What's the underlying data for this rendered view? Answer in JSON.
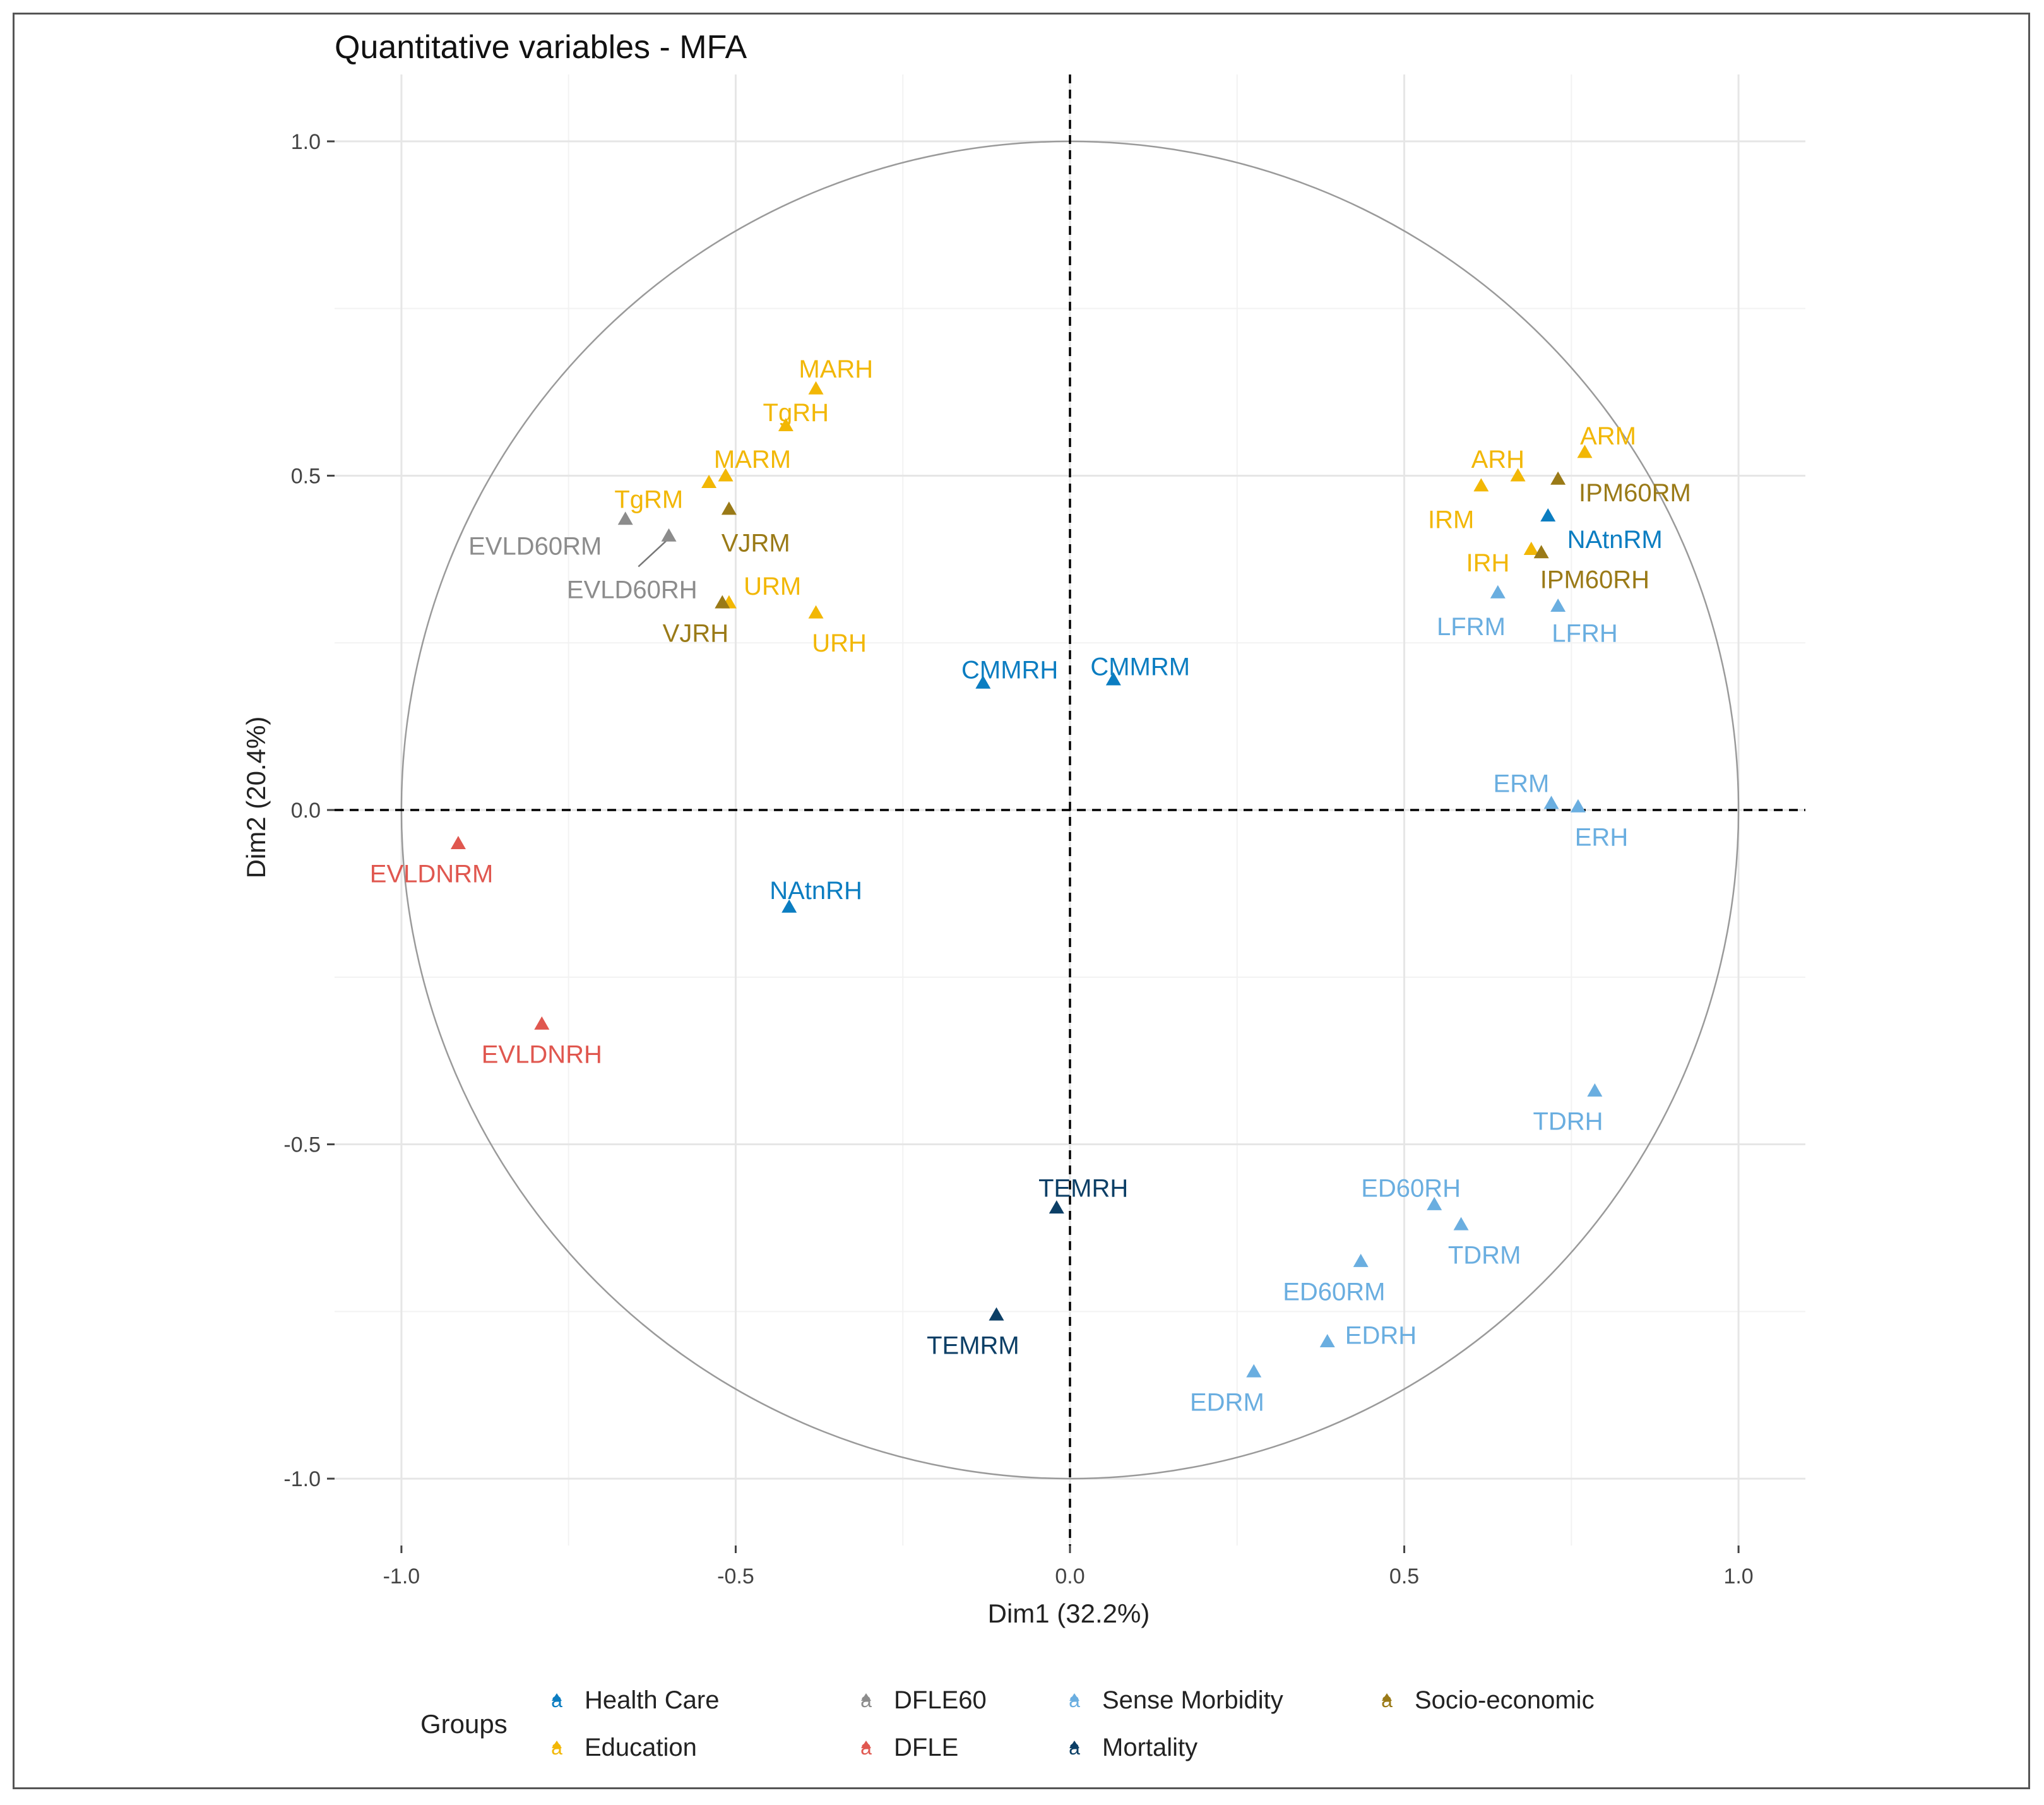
{
  "chart_data": {
    "type": "scatter",
    "title": "Quantitative variables - MFA",
    "xlabel": "Dim1 (32.2%)",
    "ylabel": "Dim2 (20.4%)",
    "xlim": [
      -1.1,
      1.1
    ],
    "ylim": [
      -1.1,
      1.1
    ],
    "x_ticks": [
      -1.0,
      -0.5,
      0.0,
      0.5,
      1.0
    ],
    "x_tick_labels": [
      "-1.0",
      "-0.5",
      "0.0",
      "0.5",
      "1.0"
    ],
    "y_ticks": [
      -1.0,
      -0.5,
      0.0,
      0.5,
      1.0
    ],
    "y_tick_labels": [
      "-1.0",
      "-0.5",
      "0.0",
      "0.5",
      "1.0"
    ],
    "grid": true,
    "unit_circle": true,
    "reference_lines": "dashed at x=0 and y=0",
    "legend": {
      "title": "Groups",
      "placement": "bottom",
      "key_glyph": "a",
      "groups": [
        {
          "name": "Health Care",
          "color": "#0b7dc1"
        },
        {
          "name": "Education",
          "color": "#f2b705"
        },
        {
          "name": "DFLE60",
          "color": "#8c8c8c"
        },
        {
          "name": "DFLE",
          "color": "#e0574f"
        },
        {
          "name": "Sense Morbidity",
          "color": "#6aaee0"
        },
        {
          "name": "Mortality",
          "color": "#0c3f66"
        },
        {
          "name": "Socio-economic",
          "color": "#9a7a17"
        }
      ]
    },
    "points": [
      {
        "label": "MARH",
        "group": "Education",
        "x": -0.38,
        "y": 0.63,
        "label_x": -0.35,
        "label_y": 0.66
      },
      {
        "label": "TgRH",
        "group": "Education",
        "x": -0.425,
        "y": 0.575,
        "label_x": -0.41,
        "label_y": 0.595
      },
      {
        "label": "MARM",
        "group": "Education",
        "x": -0.515,
        "y": 0.5,
        "label_x": -0.475,
        "label_y": 0.525
      },
      {
        "label": "TgRM",
        "group": "Education",
        "x": -0.54,
        "y": 0.49,
        "label_x": -0.63,
        "label_y": 0.465
      },
      {
        "label": "VJRM",
        "group": "Socio-economic",
        "x": -0.51,
        "y": 0.45,
        "label_x": -0.47,
        "label_y": 0.4
      },
      {
        "label": "EVLD60RM",
        "group": "DFLE60",
        "x": -0.665,
        "y": 0.435,
        "label_x": -0.8,
        "label_y": 0.395
      },
      {
        "label": "EVLD60RH",
        "group": "DFLE60",
        "x": -0.6,
        "y": 0.41,
        "label_x": -0.655,
        "label_y": 0.33
      },
      {
        "label": "URM",
        "group": "Education",
        "x": -0.51,
        "y": 0.31,
        "label_x": -0.445,
        "label_y": 0.335
      },
      {
        "label": "VJRH",
        "group": "Socio-economic",
        "x": -0.52,
        "y": 0.31,
        "label_x": -0.56,
        "label_y": 0.265
      },
      {
        "label": "URH",
        "group": "Education",
        "x": -0.38,
        "y": 0.295,
        "label_x": -0.345,
        "label_y": 0.25
      },
      {
        "label": "CMMRH",
        "group": "Health Care",
        "x": -0.13,
        "y": 0.19,
        "label_x": -0.09,
        "label_y": 0.21
      },
      {
        "label": "CMMRM",
        "group": "Health Care",
        "x": 0.065,
        "y": 0.195,
        "label_x": 0.105,
        "label_y": 0.215
      },
      {
        "label": "NAtnRH",
        "group": "Health Care",
        "x": -0.42,
        "y": -0.145,
        "label_x": -0.38,
        "label_y": -0.12
      },
      {
        "label": "EVLDNRM",
        "group": "DFLE",
        "x": -0.915,
        "y": -0.05,
        "label_x": -0.955,
        "label_y": -0.095
      },
      {
        "label": "EVLDNRH",
        "group": "DFLE",
        "x": -0.79,
        "y": -0.32,
        "label_x": -0.79,
        "label_y": -0.365
      },
      {
        "label": "TEMRH",
        "group": "Mortality",
        "x": -0.02,
        "y": -0.595,
        "label_x": 0.02,
        "label_y": -0.565
      },
      {
        "label": "TEMRM",
        "group": "Mortality",
        "x": -0.11,
        "y": -0.755,
        "label_x": -0.145,
        "label_y": -0.8
      },
      {
        "label": "ARM",
        "group": "Education",
        "x": 0.77,
        "y": 0.535,
        "label_x": 0.805,
        "label_y": 0.56
      },
      {
        "label": "ARH",
        "group": "Education",
        "x": 0.67,
        "y": 0.5,
        "label_x": 0.64,
        "label_y": 0.525
      },
      {
        "label": "IPM60RM",
        "group": "Socio-economic",
        "x": 0.73,
        "y": 0.495,
        "label_x": 0.845,
        "label_y": 0.475
      },
      {
        "label": "IRM",
        "group": "Education",
        "x": 0.615,
        "y": 0.485,
        "label_x": 0.57,
        "label_y": 0.435
      },
      {
        "label": "NAtnRM",
        "group": "Health Care",
        "x": 0.715,
        "y": 0.44,
        "label_x": 0.815,
        "label_y": 0.405
      },
      {
        "label": "IRH",
        "group": "Education",
        "x": 0.69,
        "y": 0.39,
        "label_x": 0.625,
        "label_y": 0.37
      },
      {
        "label": "IPM60RH",
        "group": "Socio-economic",
        "x": 0.705,
        "y": 0.385,
        "label_x": 0.785,
        "label_y": 0.345
      },
      {
        "label": "LFRM",
        "group": "Sense Morbidity",
        "x": 0.64,
        "y": 0.325,
        "label_x": 0.6,
        "label_y": 0.275
      },
      {
        "label": "LFRH",
        "group": "Sense Morbidity",
        "x": 0.73,
        "y": 0.305,
        "label_x": 0.77,
        "label_y": 0.265
      },
      {
        "label": "ERM",
        "group": "Sense Morbidity",
        "x": 0.72,
        "y": 0.01,
        "label_x": 0.675,
        "label_y": 0.04
      },
      {
        "label": "ERH",
        "group": "Sense Morbidity",
        "x": 0.76,
        "y": 0.005,
        "label_x": 0.795,
        "label_y": -0.04
      },
      {
        "label": "TDRH",
        "group": "Sense Morbidity",
        "x": 0.785,
        "y": -0.42,
        "label_x": 0.745,
        "label_y": -0.465
      },
      {
        "label": "ED60RH",
        "group": "Sense Morbidity",
        "x": 0.545,
        "y": -0.59,
        "label_x": 0.51,
        "label_y": -0.565
      },
      {
        "label": "TDRM",
        "group": "Sense Morbidity",
        "x": 0.585,
        "y": -0.62,
        "label_x": 0.62,
        "label_y": -0.665
      },
      {
        "label": "ED60RM",
        "group": "Sense Morbidity",
        "x": 0.435,
        "y": -0.675,
        "label_x": 0.395,
        "label_y": -0.72
      },
      {
        "label": "EDRH",
        "group": "Sense Morbidity",
        "x": 0.385,
        "y": -0.795,
        "label_x": 0.465,
        "label_y": -0.785
      },
      {
        "label": "EDRM",
        "group": "Sense Morbidity",
        "x": 0.275,
        "y": -0.84,
        "label_x": 0.235,
        "label_y": -0.885
      }
    ]
  }
}
